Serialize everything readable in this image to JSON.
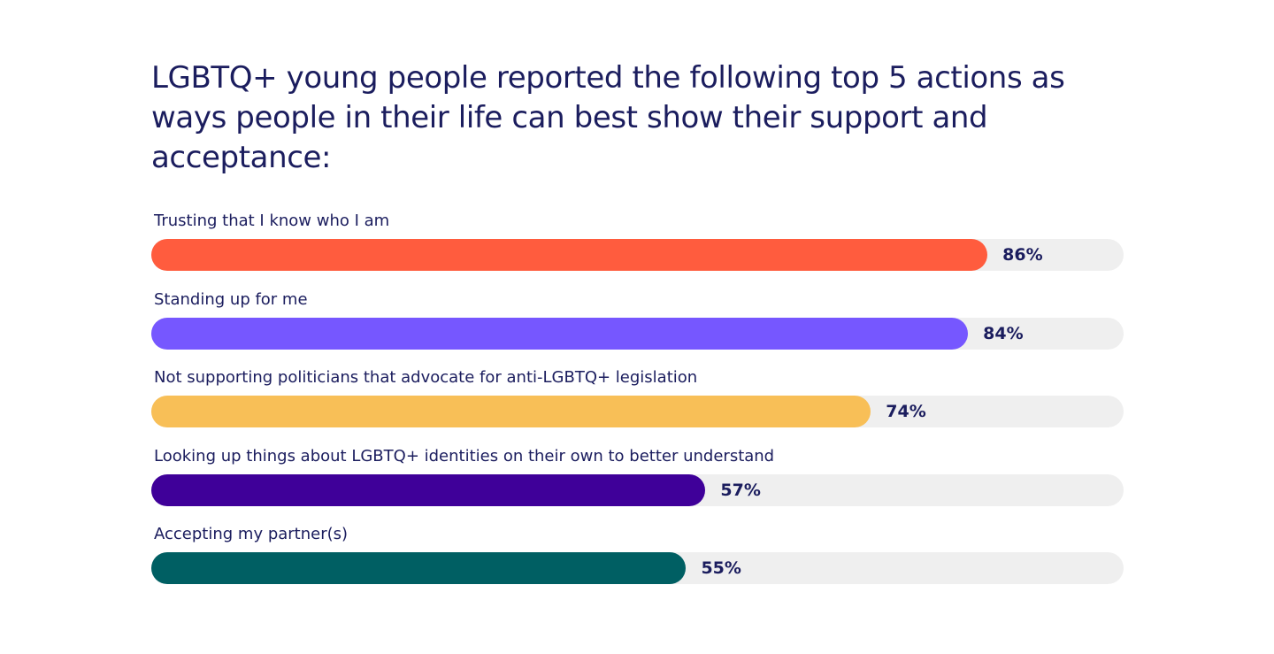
{
  "chart_data": {
    "type": "bar",
    "orientation": "horizontal",
    "title": "LGBTQ+ young people reported the following top 5 actions as ways people in their life can best show their support and acceptance:",
    "categories": [
      "Trusting that I know who I am",
      "Standing up for me",
      "Not supporting politicians that advocate for anti-LGBTQ+ legislation",
      "Looking up things about LGBTQ+ identities on their own to better understand",
      "Accepting my partner(s)"
    ],
    "values": [
      86,
      84,
      74,
      57,
      55
    ],
    "value_labels": [
      "86%",
      "84%",
      "74%",
      "57%",
      "55%"
    ],
    "colors": [
      "#ff5c3e",
      "#7657ff",
      "#f8bf57",
      "#3f0099",
      "#005f63"
    ],
    "track_color": "#efefef",
    "xlim": [
      0,
      100
    ],
    "grid": false,
    "legend": "none"
  }
}
